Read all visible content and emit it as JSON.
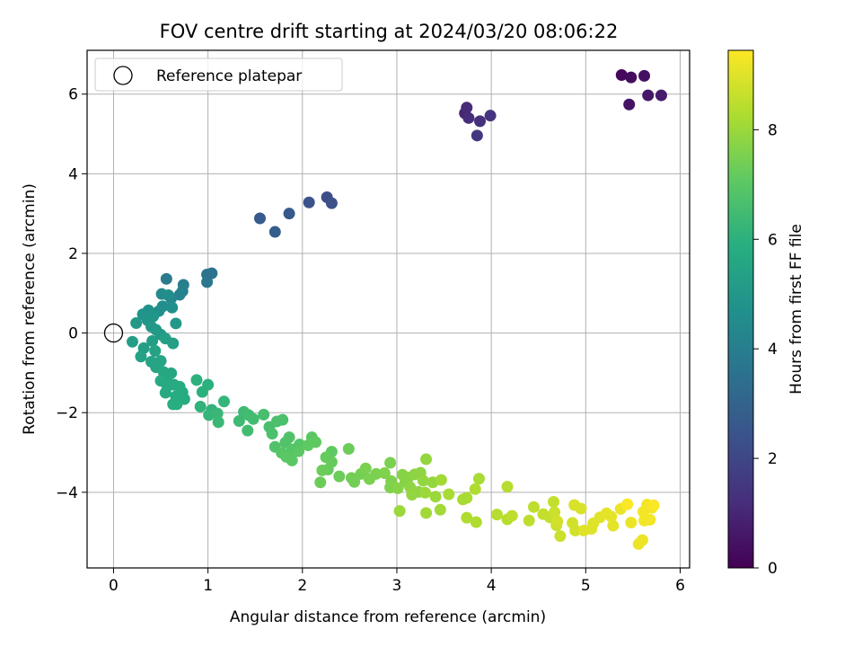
{
  "chart_data": {
    "type": "scatter",
    "title": "FOV centre drift starting at 2024/03/20 08:06:22",
    "xlabel": "Angular distance from reference (arcmin)",
    "ylabel": "Rotation from reference (arcmin)",
    "colorbar_label": "Hours from first FF file",
    "colormap": "viridis",
    "xlim": [
      -0.28,
      6.1
    ],
    "ylim": [
      -5.9,
      7.1
    ],
    "colorbar_range": [
      0,
      9.45
    ],
    "x_ticks": [
      "0",
      "1",
      "2",
      "3",
      "4",
      "5",
      "6"
    ],
    "y_ticks": [
      "−4",
      "−2",
      "0",
      "2",
      "4",
      "6"
    ],
    "colorbar_ticks": [
      "0",
      "2",
      "4",
      "6",
      "8"
    ],
    "grid": true,
    "legend": {
      "placement": "upper-left",
      "entries": [
        "Reference platepar"
      ]
    },
    "reference_point": {
      "x": 0,
      "y": 0
    },
    "points": [
      [
        5.38,
        6.48,
        0.2
      ],
      [
        5.48,
        6.42,
        0.3
      ],
      [
        5.62,
        6.46,
        0.4
      ],
      [
        5.46,
        5.74,
        0.5
      ],
      [
        5.66,
        5.97,
        0.6
      ],
      [
        5.8,
        5.97,
        0.7
      ],
      [
        3.72,
        5.52,
        1.0
      ],
      [
        3.74,
        5.66,
        1.1
      ],
      [
        3.76,
        5.4,
        1.2
      ],
      [
        3.88,
        5.32,
        1.3
      ],
      [
        3.99,
        5.46,
        1.4
      ],
      [
        3.85,
        4.96,
        1.5
      ],
      [
        2.26,
        3.41,
        2.2
      ],
      [
        2.31,
        3.26,
        2.3
      ],
      [
        2.07,
        3.28,
        2.4
      ],
      [
        1.86,
        3.0,
        2.6
      ],
      [
        1.55,
        2.88,
        2.7
      ],
      [
        1.71,
        2.54,
        2.8
      ],
      [
        0.99,
        1.47,
        3.6
      ],
      [
        1.04,
        1.5,
        3.6
      ],
      [
        0.99,
        1.28,
        3.7
      ],
      [
        0.56,
        1.36,
        3.9
      ],
      [
        0.74,
        1.21,
        4.0
      ],
      [
        0.73,
        1.05,
        4.1
      ],
      [
        0.7,
        0.96,
        4.2
      ],
      [
        0.61,
        0.87,
        4.3
      ],
      [
        0.51,
        0.98,
        4.5
      ],
      [
        0.58,
        0.95,
        4.6
      ],
      [
        0.52,
        0.67,
        4.6
      ],
      [
        0.62,
        0.64,
        4.7
      ],
      [
        0.48,
        0.55,
        4.7
      ],
      [
        0.37,
        0.57,
        4.8
      ],
      [
        0.31,
        0.47,
        4.8
      ],
      [
        0.42,
        0.42,
        4.9
      ],
      [
        0.36,
        0.32,
        4.9
      ],
      [
        0.24,
        0.25,
        5.0
      ],
      [
        0.66,
        0.24,
        5.0
      ],
      [
        0.4,
        0.16,
        5.0
      ],
      [
        0.45,
        0.08,
        5.1
      ],
      [
        0.5,
        -0.04,
        5.1
      ],
      [
        0.2,
        -0.22,
        5.2
      ],
      [
        0.41,
        -0.2,
        5.2
      ],
      [
        0.55,
        -0.14,
        5.3
      ],
      [
        0.63,
        -0.26,
        5.3
      ],
      [
        0.32,
        -0.38,
        5.3
      ],
      [
        0.44,
        -0.45,
        5.4
      ],
      [
        0.29,
        -0.59,
        5.4
      ],
      [
        0.4,
        -0.72,
        5.5
      ],
      [
        0.5,
        -0.7,
        5.5
      ],
      [
        0.45,
        -0.86,
        5.5
      ],
      [
        0.53,
        -0.98,
        5.6
      ],
      [
        0.56,
        -1.14,
        5.6
      ],
      [
        0.61,
        -1.01,
        5.6
      ],
      [
        0.5,
        -1.2,
        5.7
      ],
      [
        0.57,
        -1.34,
        5.7
      ],
      [
        0.64,
        -1.3,
        5.7
      ],
      [
        0.55,
        -1.5,
        5.7
      ],
      [
        0.7,
        -1.35,
        5.8
      ],
      [
        0.73,
        -1.49,
        5.8
      ],
      [
        0.66,
        -1.59,
        5.8
      ],
      [
        0.75,
        -1.66,
        5.8
      ],
      [
        0.63,
        -1.79,
        5.9
      ],
      [
        0.67,
        -1.79,
        5.9
      ],
      [
        0.88,
        -1.18,
        6.0
      ],
      [
        0.94,
        -1.48,
        6.0
      ],
      [
        1.0,
        -1.3,
        6.0
      ],
      [
        0.92,
        -1.85,
        6.1
      ],
      [
        1.04,
        -1.93,
        6.1
      ],
      [
        1.01,
        -2.06,
        6.2
      ],
      [
        1.17,
        -1.72,
        6.2
      ],
      [
        1.1,
        -2.02,
        6.3
      ],
      [
        1.11,
        -2.24,
        6.3
      ],
      [
        1.38,
        -1.98,
        6.4
      ],
      [
        1.33,
        -2.21,
        6.4
      ],
      [
        1.43,
        -2.06,
        6.5
      ],
      [
        1.42,
        -2.45,
        6.5
      ],
      [
        1.48,
        -2.16,
        6.5
      ],
      [
        1.59,
        -2.05,
        6.6
      ],
      [
        1.65,
        -2.36,
        6.6
      ],
      [
        1.73,
        -2.22,
        6.7
      ],
      [
        1.79,
        -2.18,
        6.7
      ],
      [
        1.68,
        -2.53,
        6.7
      ],
      [
        1.71,
        -2.86,
        6.8
      ],
      [
        1.82,
        -2.75,
        6.8
      ],
      [
        1.86,
        -2.62,
        6.8
      ],
      [
        1.78,
        -3.01,
        6.9
      ],
      [
        1.89,
        -2.92,
        6.9
      ],
      [
        1.97,
        -2.8,
        6.9
      ],
      [
        1.83,
        -3.11,
        7.0
      ],
      [
        1.96,
        -2.97,
        7.0
      ],
      [
        1.89,
        -3.2,
        7.0
      ],
      [
        2.1,
        -2.62,
        7.0
      ],
      [
        2.14,
        -2.74,
        7.1
      ],
      [
        2.06,
        -2.82,
        7.1
      ],
      [
        2.31,
        -2.98,
        7.1
      ],
      [
        2.25,
        -3.12,
        7.2
      ],
      [
        2.31,
        -3.24,
        7.2
      ],
      [
        2.27,
        -3.43,
        7.2
      ],
      [
        2.39,
        -3.6,
        7.3
      ],
      [
        2.21,
        -3.45,
        7.3
      ],
      [
        2.19,
        -3.75,
        7.3
      ],
      [
        2.49,
        -2.91,
        7.3
      ],
      [
        2.52,
        -3.64,
        7.4
      ],
      [
        2.55,
        -3.74,
        7.4
      ],
      [
        2.62,
        -3.54,
        7.4
      ],
      [
        2.67,
        -3.4,
        7.5
      ],
      [
        2.71,
        -3.67,
        7.5
      ],
      [
        2.78,
        -3.54,
        7.5
      ],
      [
        2.93,
        -3.26,
        7.5
      ],
      [
        2.87,
        -3.52,
        7.6
      ],
      [
        2.94,
        -3.72,
        7.6
      ],
      [
        2.93,
        -3.88,
        7.6
      ],
      [
        3.01,
        -3.9,
        7.7
      ],
      [
        3.06,
        -3.56,
        7.7
      ],
      [
        3.09,
        -3.74,
        7.7
      ],
      [
        3.12,
        -3.63,
        7.7
      ],
      [
        3.14,
        -3.87,
        7.8
      ],
      [
        3.19,
        -3.55,
        7.8
      ],
      [
        3.25,
        -3.51,
        7.8
      ],
      [
        3.23,
        -3.99,
        7.8
      ],
      [
        3.16,
        -4.06,
        7.9
      ],
      [
        3.31,
        -3.17,
        7.9
      ],
      [
        3.28,
        -3.71,
        7.9
      ],
      [
        3.38,
        -3.75,
        7.9
      ],
      [
        3.3,
        -4.01,
        8.0
      ],
      [
        3.41,
        -4.11,
        8.0
      ],
      [
        3.03,
        -4.47,
        8.0
      ],
      [
        3.31,
        -4.52,
        8.1
      ],
      [
        3.46,
        -4.44,
        8.1
      ],
      [
        3.47,
        -3.69,
        8.1
      ],
      [
        3.55,
        -4.05,
        8.2
      ],
      [
        3.7,
        -4.18,
        8.2
      ],
      [
        3.74,
        -4.14,
        8.2
      ],
      [
        3.87,
        -3.66,
        8.2
      ],
      [
        3.83,
        -3.92,
        8.3
      ],
      [
        3.74,
        -4.64,
        8.3
      ],
      [
        3.84,
        -4.75,
        8.3
      ],
      [
        4.06,
        -4.56,
        8.4
      ],
      [
        4.17,
        -4.68,
        8.4
      ],
      [
        4.17,
        -3.86,
        8.4
      ],
      [
        4.22,
        -4.59,
        8.5
      ],
      [
        4.4,
        -4.71,
        8.5
      ],
      [
        4.45,
        -4.37,
        8.5
      ],
      [
        4.55,
        -4.55,
        8.6
      ],
      [
        4.62,
        -4.63,
        8.6
      ],
      [
        4.66,
        -4.24,
        8.6
      ],
      [
        4.67,
        -4.5,
        8.7
      ],
      [
        4.69,
        -4.83,
        8.7
      ],
      [
        4.73,
        -5.1,
        8.7
      ],
      [
        4.7,
        -4.73,
        8.8
      ],
      [
        4.86,
        -4.77,
        8.8
      ],
      [
        4.89,
        -4.96,
        8.8
      ],
      [
        4.88,
        -4.32,
        8.9
      ],
      [
        4.95,
        -4.41,
        8.9
      ],
      [
        4.98,
        -4.96,
        9.0
      ],
      [
        5.06,
        -4.92,
        9.0
      ],
      [
        5.08,
        -4.78,
        9.0
      ],
      [
        5.15,
        -4.63,
        9.0
      ],
      [
        5.22,
        -4.53,
        9.1
      ],
      [
        5.27,
        -4.61,
        9.1
      ],
      [
        5.29,
        -4.84,
        9.1
      ],
      [
        5.37,
        -4.42,
        9.2
      ],
      [
        5.48,
        -4.76,
        9.2
      ],
      [
        5.56,
        -5.3,
        9.2
      ],
      [
        5.6,
        -5.2,
        9.2
      ],
      [
        5.61,
        -4.49,
        9.3
      ],
      [
        5.62,
        -4.71,
        9.3
      ],
      [
        5.65,
        -4.31,
        9.3
      ],
      [
        5.68,
        -4.69,
        9.3
      ],
      [
        5.7,
        -4.39,
        9.3
      ],
      [
        5.72,
        -4.33,
        9.4
      ],
      [
        5.44,
        -4.3,
        9.4
      ]
    ]
  }
}
